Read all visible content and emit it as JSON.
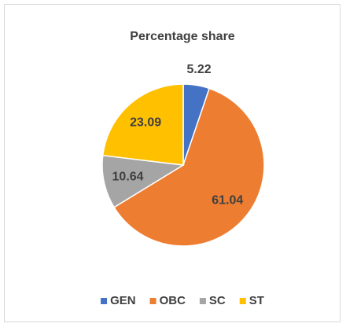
{
  "chart_data": {
    "type": "pie",
    "title": "Percentage share",
    "categories": [
      "GEN",
      "OBC",
      "SC",
      "ST"
    ],
    "values": [
      5.22,
      61.04,
      10.64,
      23.09
    ],
    "colors": [
      "#4472c4",
      "#ed7d31",
      "#a5a5a5",
      "#ffc000"
    ],
    "legend": "bottom"
  }
}
